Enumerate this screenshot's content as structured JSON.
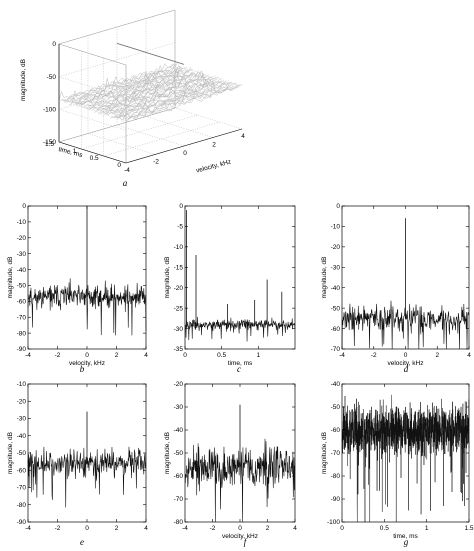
{
  "colors": {
    "trace": "#111111",
    "surface": "#b4b4b4",
    "frame": "#000000"
  },
  "chart_data": [
    {
      "id": "a",
      "type": "surface3d",
      "panel_label": "a",
      "zlabel": "magnitude, dB",
      "xlabel": "velocity, kHz",
      "ylabel": "time, ms",
      "zlim": [
        -150,
        0
      ],
      "zticks": [
        0,
        -50,
        -100,
        -150
      ],
      "xlim": [
        -4,
        4
      ],
      "xticks": [
        -4,
        -2,
        0,
        2,
        4
      ],
      "ylim": [
        0,
        1.5
      ],
      "yticks": [
        0,
        0.5,
        1,
        1.5
      ],
      "noise_floor_db": -85,
      "peak_db": -25,
      "peak_velocity_khz": 0
    },
    {
      "id": "b",
      "type": "line",
      "panel_label": "b",
      "xlabel": "velocity, kHz",
      "ylabel": "magnitude, dB",
      "xlim": [
        -4,
        4
      ],
      "ylim": [
        -90,
        0
      ],
      "xticks": [
        -4,
        -2,
        0,
        2,
        4
      ],
      "yticks": [
        0,
        -10,
        -20,
        -30,
        -40,
        -50,
        -60,
        -70,
        -80,
        -90
      ],
      "noise_level_db": -57,
      "noise_spread_db": 6,
      "peaks": [
        {
          "x": 0,
          "y": 0
        }
      ]
    },
    {
      "id": "c",
      "type": "line",
      "panel_label": "c",
      "xlabel": "time, ms",
      "ylabel": "magnitude, dB",
      "xlim": [
        0,
        1.5
      ],
      "ylim": [
        -35,
        0
      ],
      "xticks": [
        0,
        0.5,
        1
      ],
      "yticks": [
        0,
        -5,
        -10,
        -15,
        -20,
        -25,
        -30,
        -35
      ],
      "noise_level_db": -29,
      "noise_spread_db": 1,
      "peaks": [
        {
          "x": 0.02,
          "y": -1
        },
        {
          "x": 0.15,
          "y": -12
        },
        {
          "x": 0.58,
          "y": -24
        },
        {
          "x": 0.95,
          "y": -23
        },
        {
          "x": 1.12,
          "y": -18
        },
        {
          "x": 1.32,
          "y": -21
        }
      ]
    },
    {
      "id": "d",
      "type": "line",
      "panel_label": "d",
      "xlabel": "velocity, kHz",
      "ylabel": "magnitude, dB",
      "xlim": [
        -4,
        4
      ],
      "ylim": [
        -70,
        0
      ],
      "xticks": [
        -4,
        -2,
        0,
        2,
        4
      ],
      "yticks": [
        0,
        -10,
        -20,
        -30,
        -40,
        -50,
        -60,
        -70
      ],
      "noise_level_db": -55,
      "noise_spread_db": 5,
      "peaks": [
        {
          "x": 0,
          "y": -6
        }
      ]
    },
    {
      "id": "e",
      "type": "line",
      "panel_label": "e",
      "xlabel": "",
      "ylabel": "magnitude, dB",
      "xlim": [
        -4,
        4
      ],
      "ylim": [
        -90,
        -10
      ],
      "xticks": [
        -4,
        -2,
        0,
        2,
        4
      ],
      "yticks": [
        -10,
        -20,
        -30,
        -40,
        -50,
        -60,
        -70,
        -80,
        -90
      ],
      "noise_level_db": -56,
      "noise_spread_db": 6,
      "peaks": [
        {
          "x": 0,
          "y": -26
        }
      ]
    },
    {
      "id": "f",
      "type": "line",
      "panel_label": "f",
      "xlabel": "velocity, kHz",
      "ylabel": "magnitude, dB",
      "xlim": [
        -4,
        4
      ],
      "ylim": [
        -80,
        -20
      ],
      "xticks": [
        -4,
        -2,
        0,
        2,
        4
      ],
      "yticks": [
        -20,
        -30,
        -40,
        -50,
        -60,
        -70,
        -80
      ],
      "noise_level_db": -56,
      "noise_spread_db": 7,
      "peaks": [
        {
          "x": 0,
          "y": -29
        }
      ]
    },
    {
      "id": "g",
      "type": "line",
      "panel_label": "g",
      "xlabel": "time, ms",
      "ylabel": "magnitude, dB",
      "xlim": [
        0,
        1.5
      ],
      "ylim": [
        -100,
        -40
      ],
      "xticks": [
        0,
        0.5,
        1,
        1.5
      ],
      "yticks": [
        -40,
        -50,
        -60,
        -70,
        -80,
        -90,
        -100
      ],
      "noise_level_db": -60,
      "noise_spread_db": 8,
      "dense": true,
      "peaks": []
    }
  ]
}
